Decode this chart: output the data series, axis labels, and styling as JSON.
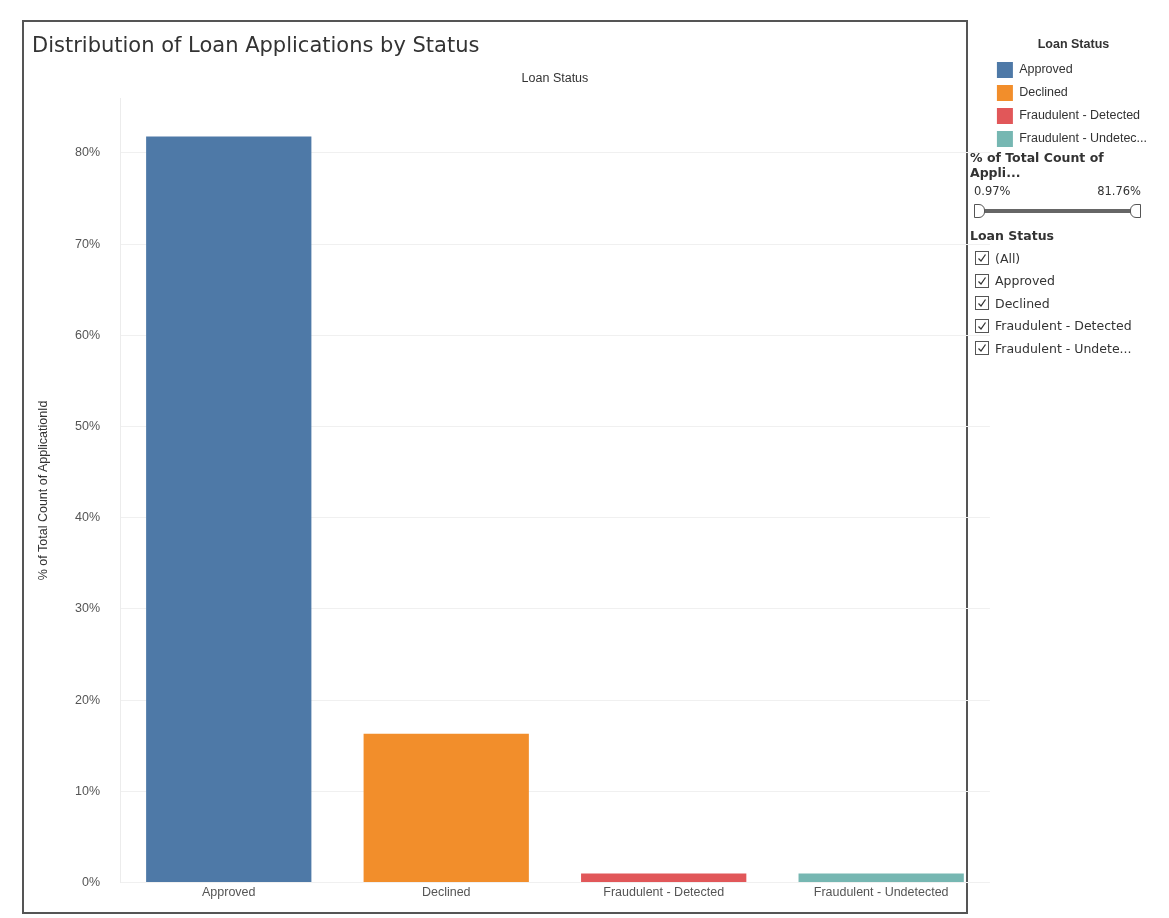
{
  "chart_data": {
    "type": "bar",
    "title": "Distribution of Loan Applications by Status",
    "xlabel": "Loan Status",
    "ylabel": "% of Total Count of ApplicationId",
    "categories": [
      "Approved",
      "Declined",
      "Fraudulent - Detected",
      "Fraudulent - Undetected"
    ],
    "series": [
      {
        "name": "Approved",
        "color": "#4e79a7",
        "values": [
          81.8,
          null,
          null,
          null
        ]
      },
      {
        "name": "Declined",
        "color": "#f28e2b",
        "values": [
          null,
          16.3,
          null,
          null
        ]
      },
      {
        "name": "Fraudulent - Detected",
        "color": "#e15759",
        "values": [
          null,
          null,
          1.0,
          null
        ]
      },
      {
        "name": "Fraudulent - Undetec...",
        "color": "#76b7b2",
        "values": [
          null,
          null,
          null,
          1.0
        ]
      }
    ],
    "ylim": [
      0,
      86
    ],
    "yticks": [
      {
        "value": 0,
        "label": "0%"
      },
      {
        "value": 10,
        "label": "10%"
      },
      {
        "value": 20,
        "label": "20%"
      },
      {
        "value": 30,
        "label": "30%"
      },
      {
        "value": 40,
        "label": "40%"
      },
      {
        "value": 50,
        "label": "50%"
      },
      {
        "value": 60,
        "label": "60%"
      },
      {
        "value": 70,
        "label": "70%"
      },
      {
        "value": 80,
        "label": "80%"
      }
    ],
    "grid": "y",
    "legend": "right",
    "legend_title": "Loan Status",
    "annotations": [
      "% of Total Count of Appli...",
      "0.97%",
      "81.76%",
      "Loan Status",
      "(All)",
      "Approved",
      "Declined",
      "Fraudulent - Detected",
      "Fraudulent - Undete..."
    ]
  }
}
